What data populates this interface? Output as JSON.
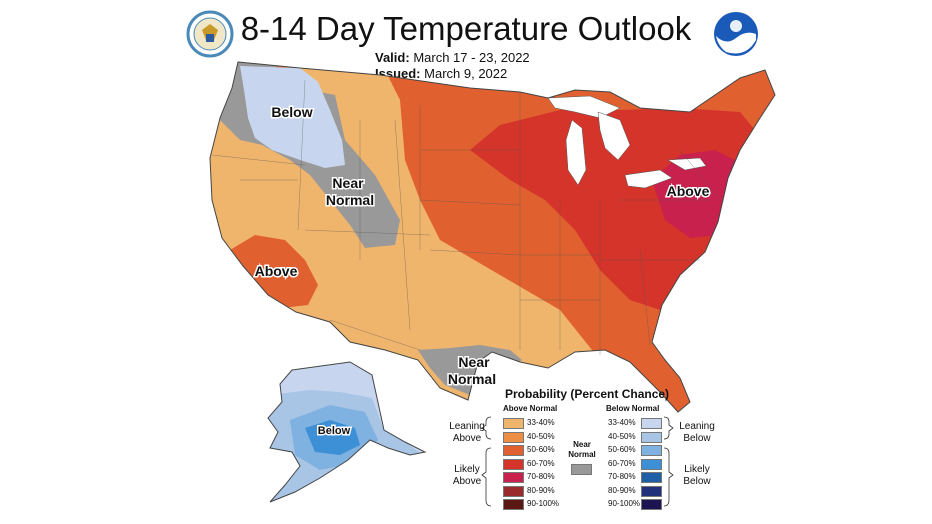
{
  "title": "8-14 Day Temperature Outlook",
  "valid_label": "Valid:",
  "valid_value": "March 17 - 23, 2022",
  "issued_label": "Issued:",
  "issued_value": "March 9, 2022",
  "regions": {
    "below_nw": "Below",
    "near_normal_w": [
      "Near",
      "Normal"
    ],
    "above_ne": "Above",
    "above_sw": "Above",
    "near_normal_tx": [
      "Near",
      "Normal"
    ],
    "below_ak": "Below"
  },
  "legend": {
    "title": "Probability (Percent Chance)",
    "above_header": "Above Normal",
    "below_header": "Below Normal",
    "near_label": [
      "Near",
      "Normal"
    ],
    "leaning_above": [
      "Leaning",
      "Above"
    ],
    "likely_above": [
      "Likely",
      "Above"
    ],
    "leaning_below": [
      "Leaning",
      "Below"
    ],
    "likely_below": [
      "Likely",
      "Below"
    ],
    "ranges": [
      "33-40%",
      "40-50%",
      "50-60%",
      "60-70%",
      "70-80%",
      "80-90%",
      "90-100%"
    ],
    "above_colors": [
      "#f0b56c",
      "#ec8e44",
      "#e0612f",
      "#d5342a",
      "#c8214e",
      "#9b2a2d",
      "#5a1812"
    ],
    "below_colors": [
      "#c7d6ee",
      "#a8c5e6",
      "#7fb2e0",
      "#3d8fd6",
      "#1f5fa8",
      "#21307a",
      "#1c1450"
    ],
    "near_color": "#999999"
  },
  "logos": {
    "left": "department-of-commerce-seal",
    "right": "noaa-logo"
  }
}
